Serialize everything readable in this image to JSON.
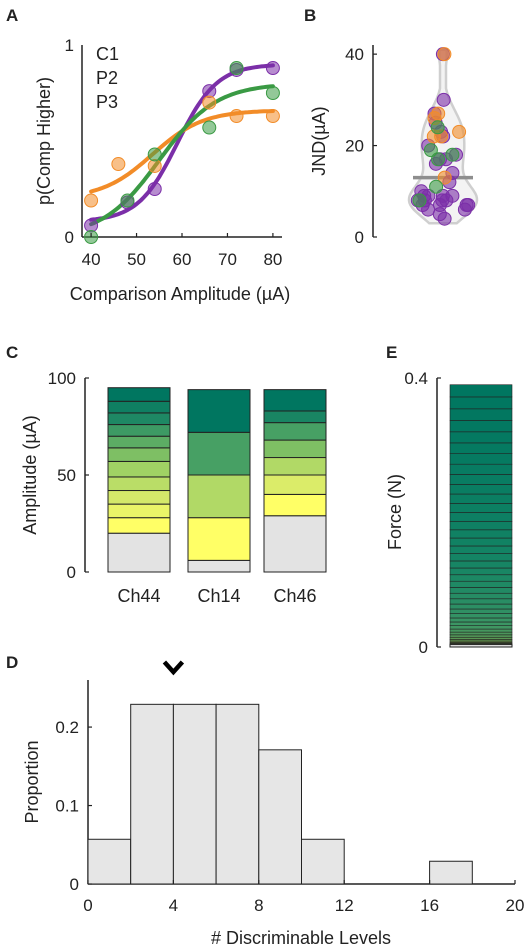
{
  "chart_data": [
    {
      "panel": "A",
      "type": "line",
      "xlabel": "Comparison Amplitude (µA)",
      "ylabel": "p(Comp Higher)",
      "xlim": [
        38,
        82
      ],
      "ylim": [
        0,
        1
      ],
      "xticks": [
        40,
        50,
        60,
        70,
        80
      ],
      "yticks": [
        0,
        1
      ],
      "series": [
        {
          "name": "C1",
          "color": "#7B2FA8",
          "x": [
            40,
            48,
            54,
            66,
            72,
            80
          ],
          "y": [
            0.06,
            0.18,
            0.25,
            0.76,
            0.87,
            0.88
          ]
        },
        {
          "name": "P2",
          "color": "#F28C28",
          "x": [
            40,
            46,
            54,
            66,
            72,
            80
          ],
          "y": [
            0.19,
            0.38,
            0.37,
            0.7,
            0.63,
            0.63
          ]
        },
        {
          "name": "P3",
          "color": "#3A9A44",
          "x": [
            40,
            48,
            54,
            66,
            72,
            80
          ],
          "y": [
            0.0,
            0.19,
            0.43,
            0.57,
            0.88,
            0.75
          ]
        }
      ]
    },
    {
      "panel": "B",
      "type": "scatter",
      "ylabel": "JND(µA)",
      "ylim": [
        0,
        42
      ],
      "yticks": [
        0,
        20,
        40
      ],
      "median": 13,
      "series": [
        {
          "name": "C1",
          "color": "#7B2FA8",
          "y": [
            40,
            30,
            27,
            25,
            23,
            22,
            20,
            18,
            17,
            17,
            16,
            14,
            12,
            10,
            9,
            9,
            9,
            9,
            8,
            8,
            8,
            8,
            7,
            7,
            7,
            7,
            6,
            6,
            5,
            4
          ]
        },
        {
          "name": "P2",
          "color": "#F28C28",
          "y": [
            40,
            27,
            26,
            23,
            22,
            22,
            13
          ]
        },
        {
          "name": "P3",
          "color": "#3A9A44",
          "y": [
            24,
            19,
            18,
            17,
            11,
            8
          ]
        }
      ]
    },
    {
      "panel": "C",
      "type": "bar",
      "ylabel": "Amplitude (µA)",
      "ylim": [
        0,
        100
      ],
      "yticks": [
        0,
        50,
        100
      ],
      "categories": [
        {
          "name": "Ch44",
          "color": "#7B2FA8",
          "base": 20,
          "boundaries": [
            20,
            28,
            35,
            42,
            49,
            57,
            64,
            70,
            76,
            82,
            88,
            95
          ]
        },
        {
          "name": "Ch14",
          "color": "#F28C28",
          "base": 6,
          "boundaries": [
            6,
            28,
            50,
            72,
            94
          ]
        },
        {
          "name": "Ch46",
          "color": "#3A9A44",
          "base": 29,
          "boundaries": [
            29,
            40,
            50,
            59,
            68,
            77,
            83,
            94
          ]
        }
      ]
    },
    {
      "panel": "D",
      "type": "bar",
      "xlabel": "# Discriminable Levels",
      "ylabel": "Proportion",
      "xlim": [
        0,
        20
      ],
      "ylim": [
        0,
        0.26
      ],
      "xticks": [
        0,
        4,
        8,
        12,
        16,
        20
      ],
      "yticks": [
        0,
        0.1,
        0.2
      ],
      "bin_edges": [
        0,
        2,
        4,
        6,
        8,
        10,
        12,
        14,
        16,
        18,
        20
      ],
      "values": [
        0.057,
        0.229,
        0.229,
        0.229,
        0.171,
        0.057,
        0,
        0,
        0.029,
        0
      ],
      "marker_x": 4
    },
    {
      "panel": "E",
      "type": "bar",
      "ylabel": "Force (N)",
      "ylim": [
        0,
        0.4
      ],
      "yticks": [
        0,
        0.4
      ],
      "top": 0.39,
      "base": 0.004,
      "levels": 40
    }
  ]
}
